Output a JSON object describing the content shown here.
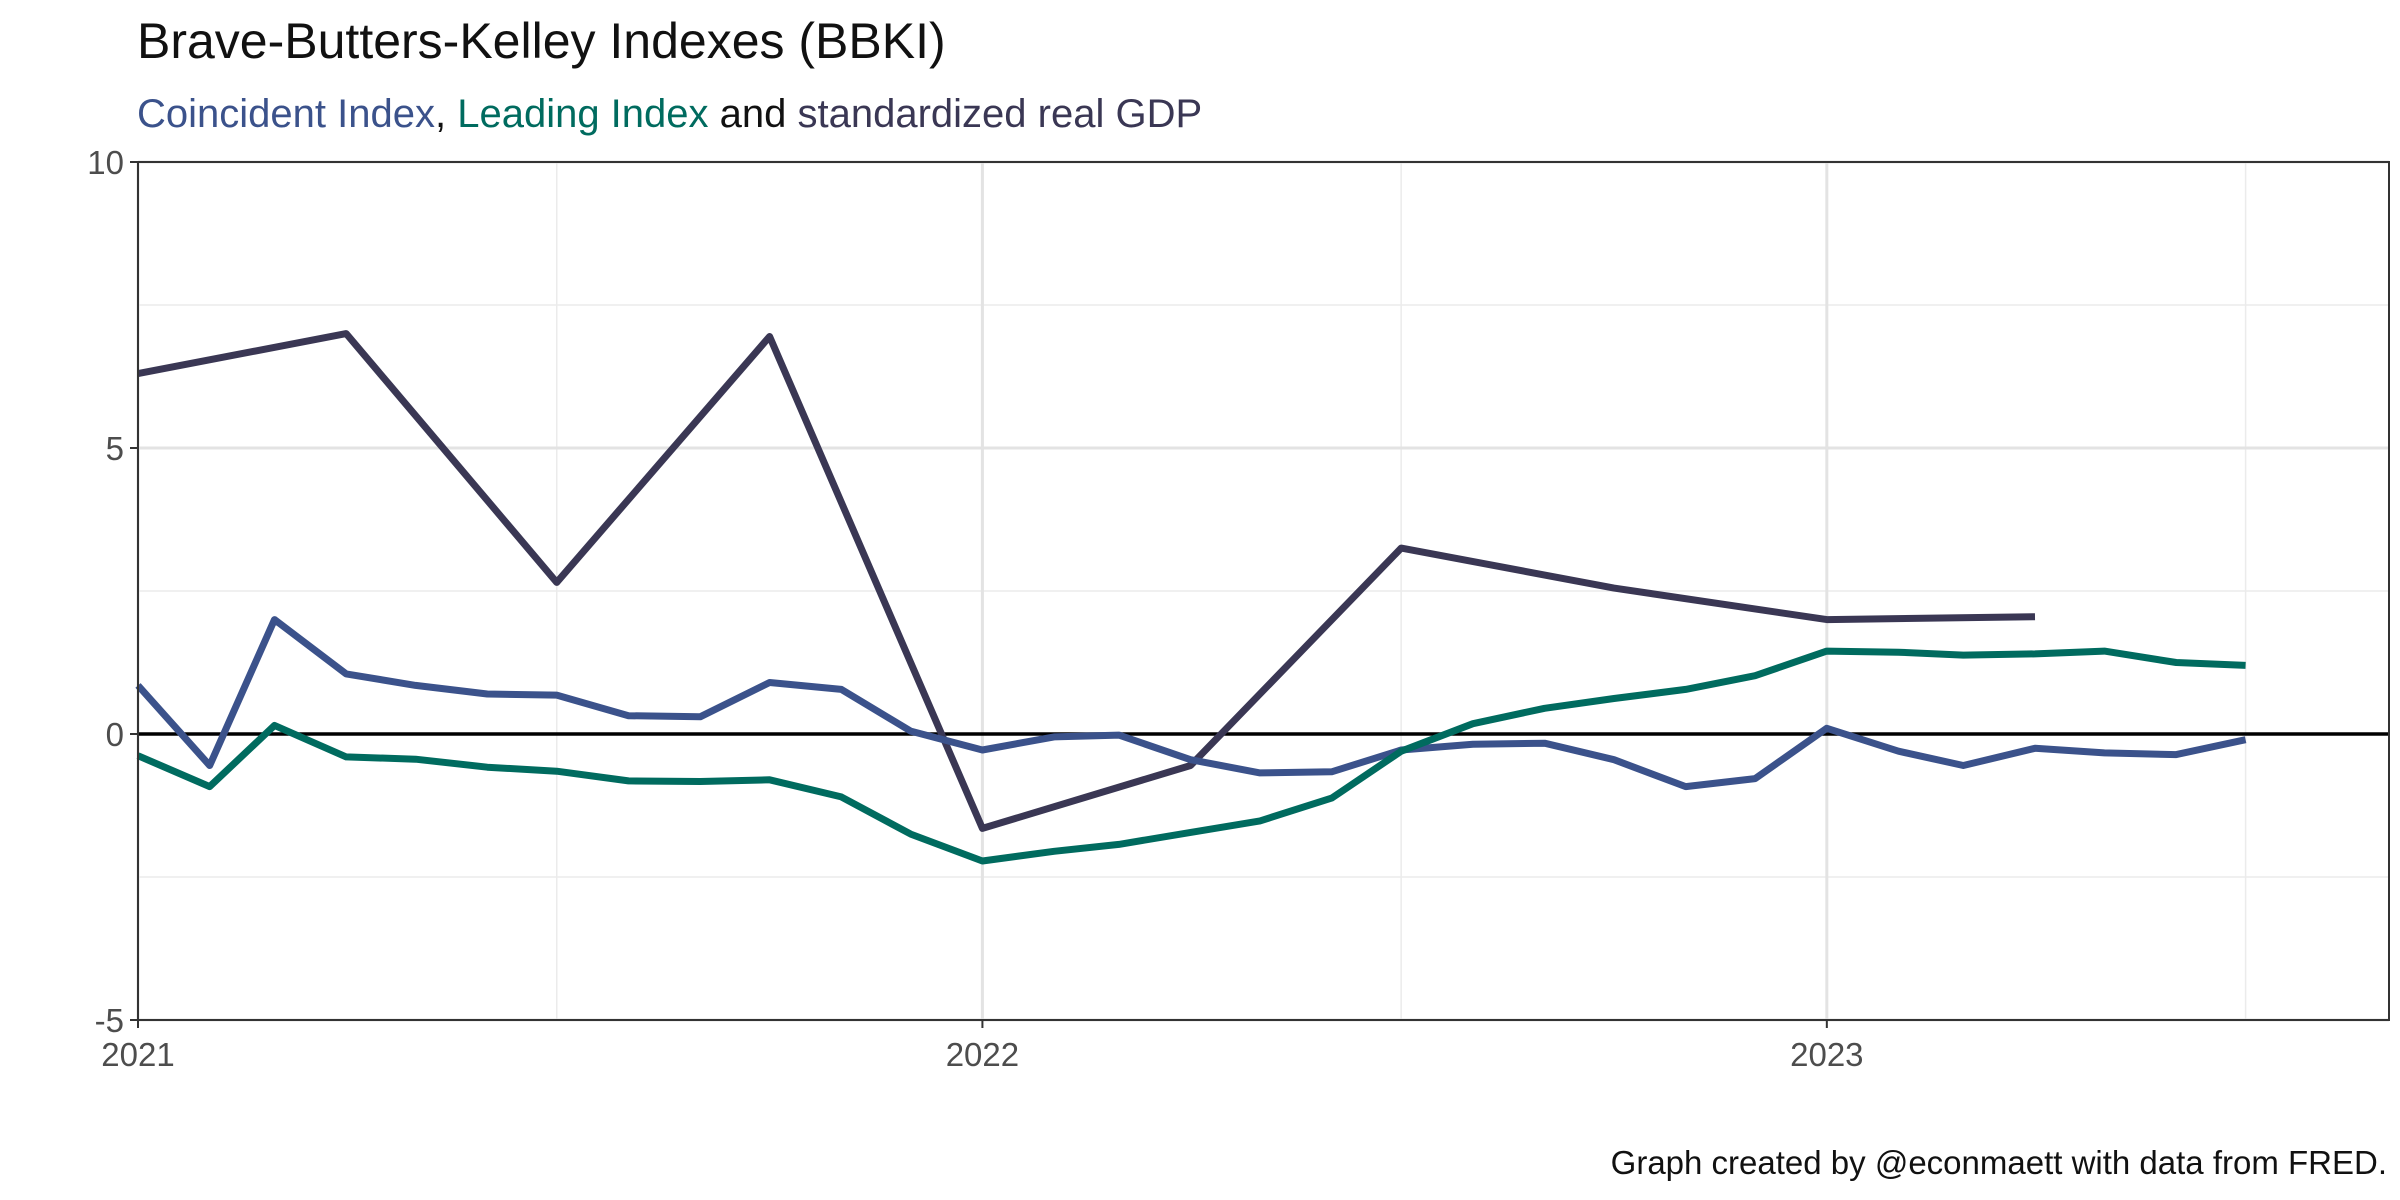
{
  "chart_data": {
    "type": "line",
    "title": "Brave-Butters-Kelley Indexes (BBKI)",
    "subtitle": [
      {
        "text": "Coincident Index",
        "color": "#3b528b"
      },
      {
        "text": ", ",
        "color": "#111111"
      },
      {
        "text": "Leading Index",
        "color": "#006b5f"
      },
      {
        "text": " and ",
        "color": "#111111"
      },
      {
        "text": "standardized real GDP",
        "color": "#3a3754"
      }
    ],
    "caption": "Graph created by @econmaett with data from FRED.",
    "xlabel": "",
    "ylabel": "",
    "xlim": [
      "2021-01-01",
      "2023-09-01"
    ],
    "ylim": [
      -5,
      10
    ],
    "x_ticks": [
      {
        "value": "2021-01-01",
        "label": "2021"
      },
      {
        "value": "2022-01-01",
        "label": "2022"
      },
      {
        "value": "2023-01-01",
        "label": "2023"
      }
    ],
    "x_minor_ticks": [
      "2021-07-01",
      "2022-07-01",
      "2023-07-01"
    ],
    "y_ticks": [
      {
        "value": -5,
        "label": "-5"
      },
      {
        "value": 0,
        "label": "0"
      },
      {
        "value": 5,
        "label": "5"
      },
      {
        "value": 10,
        "label": "10"
      }
    ],
    "y_minor_ticks": [
      -2.5,
      2.5,
      7.5
    ],
    "grid": true,
    "zero_line": true,
    "series": [
      {
        "key": "gdp",
        "color": "#3a3754",
        "points": [
          [
            "2021-01-01",
            6.3
          ],
          [
            "2021-04-01",
            7.0
          ],
          [
            "2021-07-01",
            2.65
          ],
          [
            "2021-10-01",
            6.95
          ],
          [
            "2022-01-01",
            -1.65
          ],
          [
            "2022-04-01",
            -0.55
          ],
          [
            "2022-07-01",
            3.25
          ],
          [
            "2022-10-01",
            2.55
          ],
          [
            "2023-01-01",
            2.0
          ],
          [
            "2023-04-01",
            2.05
          ]
        ]
      },
      {
        "key": "coincident",
        "color": "#3b528b",
        "points": [
          [
            "2021-01-01",
            0.85
          ],
          [
            "2021-02-01",
            -0.55
          ],
          [
            "2021-03-01",
            2.0
          ],
          [
            "2021-04-01",
            1.05
          ],
          [
            "2021-05-01",
            0.85
          ],
          [
            "2021-06-01",
            0.7
          ],
          [
            "2021-07-01",
            0.68
          ],
          [
            "2021-08-01",
            0.32
          ],
          [
            "2021-09-01",
            0.3
          ],
          [
            "2021-10-01",
            0.9
          ],
          [
            "2021-11-01",
            0.78
          ],
          [
            "2021-12-01",
            0.05
          ],
          [
            "2022-01-01",
            -0.28
          ],
          [
            "2022-02-01",
            -0.05
          ],
          [
            "2022-03-01",
            -0.02
          ],
          [
            "2022-04-01",
            -0.45
          ],
          [
            "2022-05-01",
            -0.68
          ],
          [
            "2022-06-01",
            -0.66
          ],
          [
            "2022-07-01",
            -0.28
          ],
          [
            "2022-08-01",
            -0.18
          ],
          [
            "2022-09-01",
            -0.16
          ],
          [
            "2022-10-01",
            -0.45
          ],
          [
            "2022-11-01",
            -0.92
          ],
          [
            "2022-12-01",
            -0.78
          ],
          [
            "2023-01-01",
            0.1
          ],
          [
            "2023-02-01",
            -0.3
          ],
          [
            "2023-03-01",
            -0.55
          ],
          [
            "2023-04-01",
            -0.25
          ],
          [
            "2023-05-01",
            -0.33
          ],
          [
            "2023-06-01",
            -0.36
          ],
          [
            "2023-07-01",
            -0.1
          ]
        ]
      },
      {
        "key": "leading",
        "color": "#006b5f",
        "points": [
          [
            "2021-01-01",
            -0.38
          ],
          [
            "2021-02-01",
            -0.92
          ],
          [
            "2021-03-01",
            0.15
          ],
          [
            "2021-04-01",
            -0.4
          ],
          [
            "2021-05-01",
            -0.44
          ],
          [
            "2021-06-01",
            -0.58
          ],
          [
            "2021-07-01",
            -0.65
          ],
          [
            "2021-08-01",
            -0.82
          ],
          [
            "2021-09-01",
            -0.83
          ],
          [
            "2021-10-01",
            -0.8
          ],
          [
            "2021-11-01",
            -1.1
          ],
          [
            "2021-12-01",
            -1.75
          ],
          [
            "2022-01-01",
            -2.22
          ],
          [
            "2022-02-01",
            -2.05
          ],
          [
            "2022-03-01",
            -1.93
          ],
          [
            "2022-04-01",
            -1.72
          ],
          [
            "2022-05-01",
            -1.52
          ],
          [
            "2022-06-01",
            -1.12
          ],
          [
            "2022-07-01",
            -0.3
          ],
          [
            "2022-08-01",
            0.18
          ],
          [
            "2022-09-01",
            0.45
          ],
          [
            "2022-10-01",
            0.62
          ],
          [
            "2022-11-01",
            0.78
          ],
          [
            "2022-12-01",
            1.02
          ],
          [
            "2023-01-01",
            1.45
          ],
          [
            "2023-02-01",
            1.43
          ],
          [
            "2023-03-01",
            1.38
          ],
          [
            "2023-04-01",
            1.4
          ],
          [
            "2023-05-01",
            1.45
          ],
          [
            "2023-06-01",
            1.25
          ],
          [
            "2023-07-01",
            1.2
          ]
        ]
      }
    ]
  }
}
